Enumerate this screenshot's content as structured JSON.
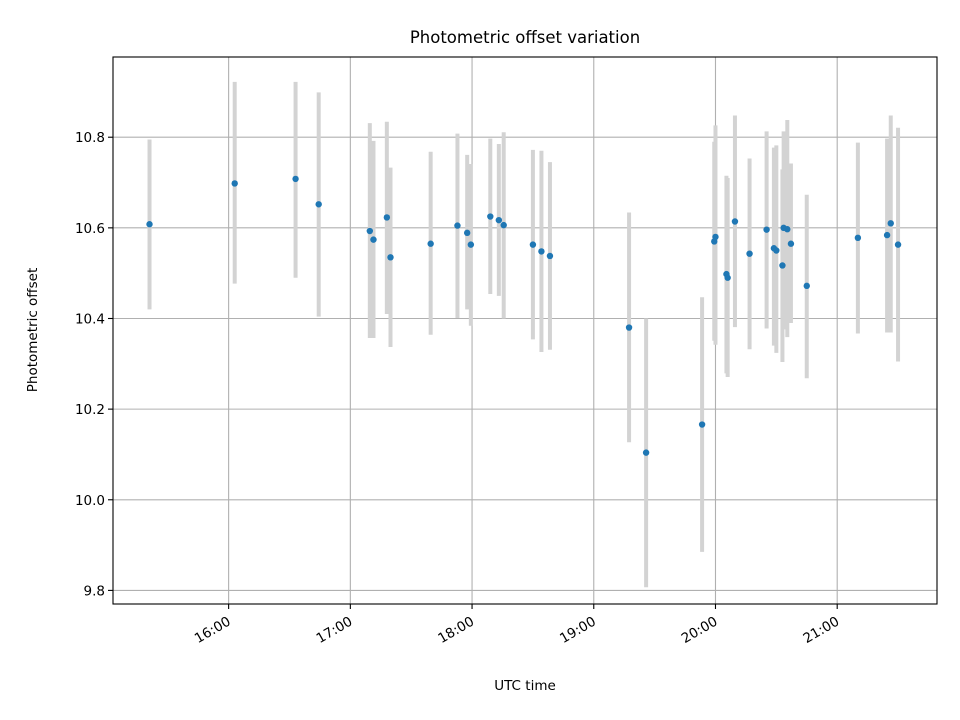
{
  "chart_data": {
    "type": "scatter",
    "title": "Photometric offset variation",
    "xlabel": "UTC time",
    "ylabel": "Photometric offset",
    "x_unit": "UTC hours",
    "xlim": [
      15.05,
      21.82
    ],
    "ylim": [
      9.77,
      10.977
    ],
    "x_ticks": [
      {
        "value": 16,
        "label": "16:00"
      },
      {
        "value": 17,
        "label": "17:00"
      },
      {
        "value": 18,
        "label": "18:00"
      },
      {
        "value": 19,
        "label": "19:00"
      },
      {
        "value": 20,
        "label": "20:00"
      },
      {
        "value": 21,
        "label": "21:00"
      }
    ],
    "y_ticks": [
      {
        "value": 9.8,
        "label": "9.8"
      },
      {
        "value": 10.0,
        "label": "10.0"
      },
      {
        "value": 10.2,
        "label": "10.2"
      },
      {
        "value": 10.4,
        "label": "10.4"
      },
      {
        "value": 10.6,
        "label": "10.6"
      },
      {
        "value": 10.8,
        "label": "10.8"
      }
    ],
    "grid": true,
    "error_bar_color": "#d3d3d3",
    "point_color": "#1f77b4",
    "points": [
      {
        "x": 15.35,
        "y": 10.608,
        "ylo": 10.42,
        "yhi": 10.795
      },
      {
        "x": 16.05,
        "y": 10.698,
        "ylo": 10.477,
        "yhi": 10.922
      },
      {
        "x": 16.55,
        "y": 10.708,
        "ylo": 10.49,
        "yhi": 10.922
      },
      {
        "x": 16.74,
        "y": 10.652,
        "ylo": 10.404,
        "yhi": 10.899
      },
      {
        "x": 17.16,
        "y": 10.593,
        "ylo": 10.357,
        "yhi": 10.831
      },
      {
        "x": 17.19,
        "y": 10.574,
        "ylo": 10.357,
        "yhi": 10.792
      },
      {
        "x": 17.3,
        "y": 10.623,
        "ylo": 10.41,
        "yhi": 10.834
      },
      {
        "x": 17.33,
        "y": 10.535,
        "ylo": 10.337,
        "yhi": 10.733
      },
      {
        "x": 17.66,
        "y": 10.565,
        "ylo": 10.364,
        "yhi": 10.768
      },
      {
        "x": 17.88,
        "y": 10.605,
        "ylo": 10.401,
        "yhi": 10.808
      },
      {
        "x": 17.96,
        "y": 10.589,
        "ylo": 10.42,
        "yhi": 10.761
      },
      {
        "x": 17.99,
        "y": 10.563,
        "ylo": 10.384,
        "yhi": 10.741
      },
      {
        "x": 18.15,
        "y": 10.625,
        "ylo": 10.454,
        "yhi": 10.797
      },
      {
        "x": 18.22,
        "y": 10.617,
        "ylo": 10.45,
        "yhi": 10.785
      },
      {
        "x": 18.26,
        "y": 10.606,
        "ylo": 10.4,
        "yhi": 10.811
      },
      {
        "x": 18.5,
        "y": 10.563,
        "ylo": 10.354,
        "yhi": 10.772
      },
      {
        "x": 18.57,
        "y": 10.548,
        "ylo": 10.326,
        "yhi": 10.77
      },
      {
        "x": 18.64,
        "y": 10.538,
        "ylo": 10.331,
        "yhi": 10.745
      },
      {
        "x": 19.29,
        "y": 10.38,
        "ylo": 10.127,
        "yhi": 10.634
      },
      {
        "x": 19.43,
        "y": 10.104,
        "ylo": 9.807,
        "yhi": 10.4
      },
      {
        "x": 19.89,
        "y": 10.166,
        "ylo": 9.885,
        "yhi": 10.447
      },
      {
        "x": 19.99,
        "y": 10.57,
        "ylo": 10.351,
        "yhi": 10.79
      },
      {
        "x": 20.0,
        "y": 10.58,
        "ylo": 10.342,
        "yhi": 10.826
      },
      {
        "x": 20.09,
        "y": 10.498,
        "ylo": 10.279,
        "yhi": 10.715
      },
      {
        "x": 20.1,
        "y": 10.49,
        "ylo": 10.271,
        "yhi": 10.71
      },
      {
        "x": 20.16,
        "y": 10.614,
        "ylo": 10.381,
        "yhi": 10.848
      },
      {
        "x": 20.28,
        "y": 10.543,
        "ylo": 10.332,
        "yhi": 10.753
      },
      {
        "x": 20.42,
        "y": 10.596,
        "ylo": 10.378,
        "yhi": 10.813
      },
      {
        "x": 20.48,
        "y": 10.555,
        "ylo": 10.34,
        "yhi": 10.777
      },
      {
        "x": 20.5,
        "y": 10.55,
        "ylo": 10.324,
        "yhi": 10.782
      },
      {
        "x": 20.55,
        "y": 10.517,
        "ylo": 10.304,
        "yhi": 10.729
      },
      {
        "x": 20.56,
        "y": 10.6,
        "ylo": 10.376,
        "yhi": 10.813
      },
      {
        "x": 20.59,
        "y": 10.597,
        "ylo": 10.359,
        "yhi": 10.838
      },
      {
        "x": 20.62,
        "y": 10.565,
        "ylo": 10.39,
        "yhi": 10.742
      },
      {
        "x": 20.75,
        "y": 10.472,
        "ylo": 10.268,
        "yhi": 10.673
      },
      {
        "x": 21.17,
        "y": 10.578,
        "ylo": 10.367,
        "yhi": 10.788
      },
      {
        "x": 21.41,
        "y": 10.584,
        "ylo": 10.369,
        "yhi": 10.797
      },
      {
        "x": 21.44,
        "y": 10.61,
        "ylo": 10.369,
        "yhi": 10.848
      },
      {
        "x": 21.5,
        "y": 10.563,
        "ylo": 10.305,
        "yhi": 10.821
      }
    ]
  }
}
